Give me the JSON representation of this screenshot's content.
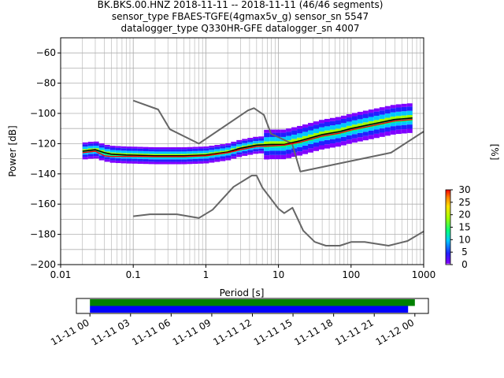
{
  "figure": {
    "title_lines": [
      "BK.BKS.00.HNZ   2018-11-11 -- 2018-11-11  (46/46 segments)",
      "sensor_type FBAES-TGFE(4gmax5v_g) sensor_sn 5547",
      "datalogger_type Q330HR-GFE datalogger_sn 4007"
    ]
  },
  "chart_data": [
    {
      "type": "line",
      "xlabel": "Period [s]",
      "ylabel": "Power [dB]",
      "xscale": "log",
      "xlim": [
        0.01,
        1000
      ],
      "ylim": [
        -200,
        -50
      ],
      "grid": true,
      "x_ticks": [
        {
          "value": 0.01,
          "label": "0.01"
        },
        {
          "value": 0.1,
          "label": "0.1"
        },
        {
          "value": 1,
          "label": "1"
        },
        {
          "value": 10,
          "label": "10"
        },
        {
          "value": 100,
          "label": "100"
        },
        {
          "value": 1000,
          "label": "1000"
        }
      ],
      "y_ticks": [
        {
          "value": -60,
          "label": "−60"
        },
        {
          "value": -80,
          "label": "−80"
        },
        {
          "value": -100,
          "label": "−100"
        },
        {
          "value": -120,
          "label": "−120"
        },
        {
          "value": -140,
          "label": "−140"
        },
        {
          "value": -160,
          "label": "−160"
        },
        {
          "value": -180,
          "label": "−180"
        },
        {
          "value": -200,
          "label": "−200"
        }
      ],
      "series": [
        {
          "role": "nhnm",
          "color": "#666666",
          "points": [
            [
              0.1,
              -91.5
            ],
            [
              0.22,
              -97.4
            ],
            [
              0.32,
              -110.5
            ],
            [
              0.8,
              -120
            ],
            [
              3.8,
              -98
            ],
            [
              4.6,
              -96.5
            ],
            [
              6.3,
              -101
            ],
            [
              7.9,
              -113.5
            ],
            [
              15.4,
              -120
            ],
            [
              20,
              -138.5
            ],
            [
              354.8,
              -126
            ],
            [
              1000,
              -112
            ]
          ]
        },
        {
          "role": "nlnm",
          "color": "#666666",
          "points": [
            [
              0.1,
              -168
            ],
            [
              0.17,
              -166.7
            ],
            [
              0.4,
              -166.7
            ],
            [
              0.8,
              -169.2
            ],
            [
              1.24,
              -163.7
            ],
            [
              2.4,
              -148.6
            ],
            [
              4.3,
              -141.1
            ],
            [
              5,
              -141.1
            ],
            [
              6,
              -149
            ],
            [
              10,
              -163
            ],
            [
              12,
              -166
            ],
            [
              15.6,
              -162.4
            ],
            [
              21.9,
              -177.5
            ],
            [
              31.6,
              -185
            ],
            [
              45,
              -187.5
            ],
            [
              70,
              -187.5
            ],
            [
              101,
              -185
            ],
            [
              154,
              -185
            ],
            [
              328,
              -187.5
            ],
            [
              600,
              -184.4
            ],
            [
              1000,
              -178
            ]
          ]
        },
        {
          "role": "mean",
          "color": "#000000",
          "points": [
            [
              0.02,
              -125
            ],
            [
              0.03,
              -124
            ],
            [
              0.04,
              -126
            ],
            [
              0.05,
              -127
            ],
            [
              0.08,
              -127.5
            ],
            [
              0.1,
              -127.6
            ],
            [
              0.2,
              -128
            ],
            [
              0.5,
              -128
            ],
            [
              1,
              -127.5
            ],
            [
              2,
              -125.5
            ],
            [
              3,
              -123
            ],
            [
              5,
              -121
            ],
            [
              8,
              -120.5
            ],
            [
              12,
              -120.5
            ],
            [
              20,
              -118
            ],
            [
              40,
              -114
            ],
            [
              70,
              -112
            ],
            [
              100,
              -110
            ],
            [
              200,
              -107
            ],
            [
              400,
              -104
            ],
            [
              700,
              -103
            ]
          ]
        },
        {
          "role": "mode",
          "color": "#ff0000",
          "points": [
            [
              0.02,
              -126
            ],
            [
              0.03,
              -125
            ],
            [
              0.04,
              -128
            ],
            [
              0.05,
              -128.5
            ],
            [
              0.08,
              -128.5
            ],
            [
              0.1,
              -128.4
            ],
            [
              0.2,
              -128.6
            ],
            [
              0.5,
              -128.6
            ],
            [
              1,
              -128
            ],
            [
              2,
              -126
            ],
            [
              3,
              -124
            ],
            [
              5,
              -122
            ],
            [
              8,
              -121.5
            ],
            [
              12,
              -121
            ],
            [
              20,
              -119
            ],
            [
              40,
              -115
            ],
            [
              70,
              -113
            ],
            [
              100,
              -111
            ],
            [
              200,
              -108
            ],
            [
              400,
              -105
            ],
            [
              700,
              -104
            ]
          ]
        }
      ],
      "colorbar": {
        "label": "[%]",
        "range": [
          0,
          30
        ],
        "ticks": [
          {
            "value": 0,
            "label": "0"
          },
          {
            "value": 5,
            "label": "5"
          },
          {
            "value": 10,
            "label": "10"
          },
          {
            "value": 15,
            "label": "15"
          },
          {
            "value": 20,
            "label": "20"
          },
          {
            "value": 25,
            "label": "25"
          },
          {
            "value": 30,
            "label": "30"
          }
        ]
      }
    },
    {
      "type": "bar",
      "orientation": "horizontal",
      "xlim_hours": [
        -1,
        25
      ],
      "x_ticks": [
        {
          "value": 0,
          "label": "11-11 00"
        },
        {
          "value": 3,
          "label": "11-11 03"
        },
        {
          "value": 6,
          "label": "11-11 06"
        },
        {
          "value": 9,
          "label": "11-11 09"
        },
        {
          "value": 12,
          "label": "11-11 12"
        },
        {
          "value": 15,
          "label": "11-11 15"
        },
        {
          "value": 18,
          "label": "11-11 18"
        },
        {
          "value": 21,
          "label": "11-11 21"
        },
        {
          "value": 24,
          "label": "11-12 00"
        }
      ],
      "bars": [
        {
          "role": "data_coverage",
          "color": "#008000",
          "start_hour": 0,
          "end_hour": 24
        },
        {
          "role": "psd_coverage",
          "color": "#0000ff",
          "start_hour": 0,
          "end_hour": 23.5
        }
      ]
    }
  ]
}
